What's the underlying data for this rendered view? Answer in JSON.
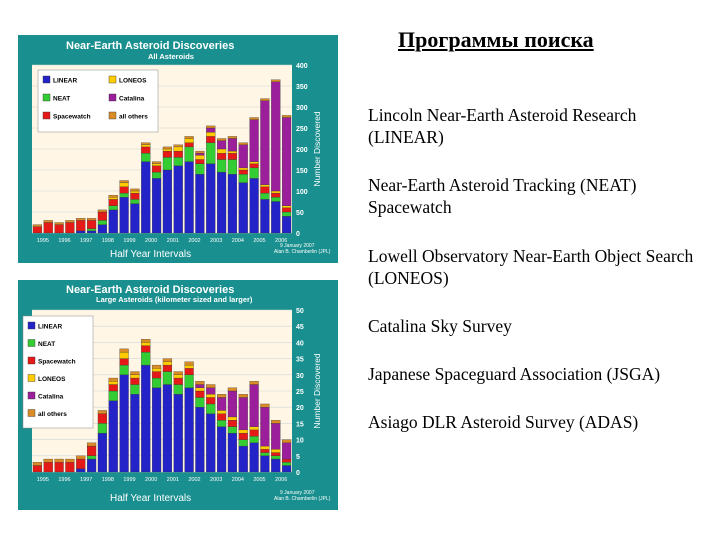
{
  "slide": {
    "title": "Программы поиска",
    "programs": [
      "Lincoln Near-Earth Asteroid Research (LINEAR)",
      "Near-Earth Asteroid Tracking (NEAT) Spacewatch",
      "Lowell Observatory Near-Earth Object Search (LONEOS)",
      "Catalina Sky Survey",
      "Japanese Spaceguard Association (JSGA)",
      "Asiago DLR Asteroid Survey (ADAS)"
    ]
  },
  "colors": {
    "teal": "#1a8f8f",
    "plot_bg": "#fff6e6",
    "linear": "#2323c8",
    "neat": "#33cc33",
    "spacewatch": "#e61919",
    "loneos": "#ffcc00",
    "catalina": "#9b1f9b",
    "all_others": "#d98c26"
  },
  "chart_data": [
    {
      "type": "bar",
      "stacked": true,
      "title": "Near-Earth Asteroid Discoveries",
      "subtitle": "All Asteroids",
      "xlabel": "Half Year Intervals",
      "ylabel": "Number Discovered",
      "ylim": [
        0,
        400
      ],
      "yticks": [
        0,
        50,
        100,
        150,
        200,
        250,
        300,
        350,
        400
      ],
      "year_labels": [
        "1995",
        "1996",
        "1997",
        "1998",
        "1999",
        "2000",
        "2001",
        "2002",
        "2003",
        "2004",
        "2005",
        "2006"
      ],
      "credit": [
        "9 January 2007",
        "Alan B. Chamberlin (JPL)"
      ],
      "legend": [
        "LINEAR",
        "LONEOS",
        "NEAT",
        "Catalina",
        "Spacewatch",
        "all others"
      ],
      "legend_colors": [
        "#2323c8",
        "#ffcc00",
        "#33cc33",
        "#9b1f9b",
        "#e61919",
        "#d98c26"
      ],
      "categories": [
        "1995a",
        "1995b",
        "1996a",
        "1996b",
        "1997a",
        "1997b",
        "1998a",
        "1998b",
        "1999a",
        "1999b",
        "2000a",
        "2000b",
        "2001a",
        "2001b",
        "2002a",
        "2002b",
        "2003a",
        "2003b",
        "2004a",
        "2004b",
        "2005a",
        "2005b",
        "2006a",
        "2006b"
      ],
      "series": [
        {
          "name": "LINEAR",
          "color": "#2323c8",
          "values": [
            0,
            0,
            0,
            0,
            5,
            5,
            20,
            55,
            85,
            70,
            170,
            130,
            150,
            160,
            170,
            140,
            165,
            145,
            140,
            120,
            130,
            80,
            75,
            40
          ]
        },
        {
          "name": "NEAT",
          "color": "#33cc33",
          "values": [
            0,
            0,
            0,
            0,
            0,
            5,
            10,
            10,
            10,
            10,
            20,
            15,
            30,
            20,
            35,
            25,
            50,
            30,
            35,
            20,
            25,
            15,
            10,
            10
          ]
        },
        {
          "name": "Spacewatch",
          "color": "#e61919",
          "values": [
            15,
            25,
            20,
            25,
            25,
            20,
            20,
            15,
            15,
            15,
            15,
            15,
            15,
            15,
            10,
            10,
            15,
            15,
            15,
            10,
            10,
            15,
            10,
            10
          ]
        },
        {
          "name": "LONEOS",
          "color": "#ffcc00",
          "values": [
            0,
            0,
            0,
            0,
            0,
            0,
            0,
            5,
            10,
            5,
            5,
            5,
            5,
            10,
            10,
            10,
            10,
            10,
            5,
            5,
            5,
            5,
            5,
            5
          ]
        },
        {
          "name": "Catalina",
          "color": "#9b1f9b",
          "values": [
            0,
            0,
            0,
            0,
            0,
            0,
            0,
            0,
            0,
            0,
            0,
            0,
            0,
            0,
            0,
            5,
            10,
            20,
            30,
            55,
            100,
            200,
            260,
            210
          ]
        },
        {
          "name": "all others",
          "color": "#d98c26",
          "values": [
            5,
            5,
            5,
            5,
            5,
            5,
            5,
            5,
            5,
            5,
            5,
            5,
            5,
            5,
            5,
            5,
            5,
            5,
            5,
            5,
            5,
            5,
            5,
            5
          ]
        }
      ]
    },
    {
      "type": "bar",
      "stacked": true,
      "title": "Near-Earth Asteroid Discoveries",
      "subtitle": "Large Asteroids (kilometer sized and larger)",
      "xlabel": "Half Year Intervals",
      "ylabel": "Number Discovered",
      "ylim": [
        0,
        50
      ],
      "yticks": [
        0,
        5,
        10,
        15,
        20,
        25,
        30,
        35,
        40,
        45,
        50
      ],
      "year_labels": [
        "1995",
        "1996",
        "1997",
        "1998",
        "1999",
        "2000",
        "2001",
        "2002",
        "2003",
        "2004",
        "2005",
        "2006"
      ],
      "credit": [
        "9 January 2007",
        "Alan B. Chamberlin (JPL)"
      ],
      "legend": [
        "LINEAR",
        "NEAT",
        "Spacewatch",
        "LONEOS",
        "Catalina",
        "all others"
      ],
      "legend_colors": [
        "#2323c8",
        "#33cc33",
        "#e61919",
        "#ffcc00",
        "#9b1f9b",
        "#d98c26"
      ],
      "categories": [
        "1995a",
        "1995b",
        "1996a",
        "1996b",
        "1997a",
        "1997b",
        "1998a",
        "1998b",
        "1999a",
        "1999b",
        "2000a",
        "2000b",
        "2001a",
        "2001b",
        "2002a",
        "2002b",
        "2003a",
        "2003b",
        "2004a",
        "2004b",
        "2005a",
        "2005b",
        "2006a",
        "2006b"
      ],
      "series": [
        {
          "name": "LINEAR",
          "color": "#2323c8",
          "values": [
            0,
            0,
            0,
            0,
            1,
            4,
            12,
            22,
            30,
            24,
            33,
            26,
            27,
            24,
            26,
            20,
            18,
            14,
            12,
            8,
            9,
            5,
            4,
            2
          ]
        },
        {
          "name": "NEAT",
          "color": "#33cc33",
          "values": [
            0,
            0,
            0,
            0,
            0,
            1,
            3,
            3,
            3,
            3,
            4,
            3,
            4,
            3,
            4,
            3,
            3,
            2,
            2,
            2,
            2,
            1,
            1,
            1
          ]
        },
        {
          "name": "Spacewatch",
          "color": "#e61919",
          "values": [
            2,
            3,
            3,
            3,
            3,
            3,
            3,
            2,
            2,
            2,
            2,
            2,
            2,
            2,
            2,
            2,
            2,
            2,
            2,
            2,
            2,
            1,
            1,
            1
          ]
        },
        {
          "name": "LONEOS",
          "color": "#ffcc00",
          "values": [
            0,
            0,
            0,
            0,
            0,
            0,
            0,
            1,
            2,
            1,
            1,
            1,
            1,
            1,
            1,
            1,
            1,
            1,
            1,
            1,
            1,
            1,
            1,
            0
          ]
        },
        {
          "name": "Catalina",
          "color": "#9b1f9b",
          "values": [
            0,
            0,
            0,
            0,
            0,
            0,
            0,
            0,
            0,
            0,
            0,
            0,
            0,
            0,
            0,
            1,
            2,
            4,
            8,
            10,
            13,
            12,
            8,
            5
          ]
        },
        {
          "name": "all others",
          "color": "#d98c26",
          "values": [
            1,
            1,
            1,
            1,
            1,
            1,
            1,
            1,
            1,
            1,
            1,
            1,
            1,
            1,
            1,
            1,
            1,
            1,
            1,
            1,
            1,
            1,
            1,
            1
          ]
        }
      ]
    }
  ]
}
